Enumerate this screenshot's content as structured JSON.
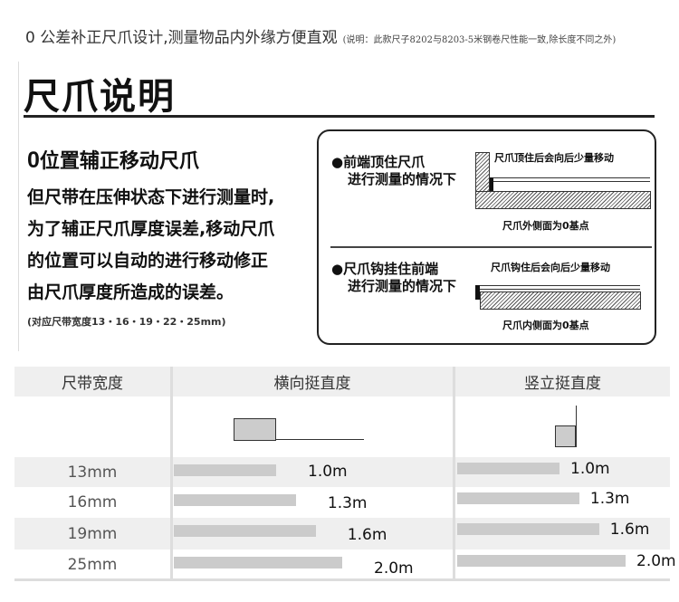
{
  "header": {
    "main": "0 公差补正尺爪设计,测量物品内外缘方便直观",
    "note": "(说明：此款尺子8202与8203-5米钢卷尺性能一致,除长度不同之外)"
  },
  "title": "尺爪说明",
  "left": {
    "subtitle_num": "0",
    "subtitle": "位置辅正移动尺爪",
    "lines": [
      "但尺带在压伸状态下进行测量时,",
      "为了辅正尺爪厚度误差,移动尺爪",
      "的位置可以自动的进行移动修正",
      "由尺爪厚度所造成的误差。"
    ],
    "note": "(对应尺带宽度13・16・19・22・25mm)"
  },
  "diagram": {
    "case1": {
      "title1": "●前端顶住尺爪",
      "title2": "进行测量的情况下",
      "top": "尺爪顶住后会向后少量移动",
      "bottom": "尺爪外侧面为0基点"
    },
    "case2": {
      "title1": "●尺爪钩挂住前端",
      "title2": "进行测量的情况下",
      "top": "尺爪钩住后会向后少量移动",
      "bottom": "尺爪内侧面为0基点"
    }
  },
  "table": {
    "headers": [
      "尺带宽度",
      "横向挺直度",
      "竖立挺直度"
    ],
    "rows": [
      {
        "width": "13mm",
        "h": 1.0,
        "h_label": "1.0m",
        "v": 1.0,
        "v_label": "1.0m"
      },
      {
        "width": "16mm",
        "h": 1.3,
        "h_label": "1.3m",
        "v": 1.3,
        "v_label": "1.3m"
      },
      {
        "width": "19mm",
        "h": 1.6,
        "h_label": "1.6m",
        "v": 1.6,
        "v_label": "1.6m"
      },
      {
        "width": "25mm",
        "h": 2.0,
        "h_label": "2.0m",
        "v": 2.0,
        "v_label": "2.0m"
      }
    ],
    "colors": {
      "row_bg": "#efefef",
      "bar": "#cbcbcb"
    }
  }
}
